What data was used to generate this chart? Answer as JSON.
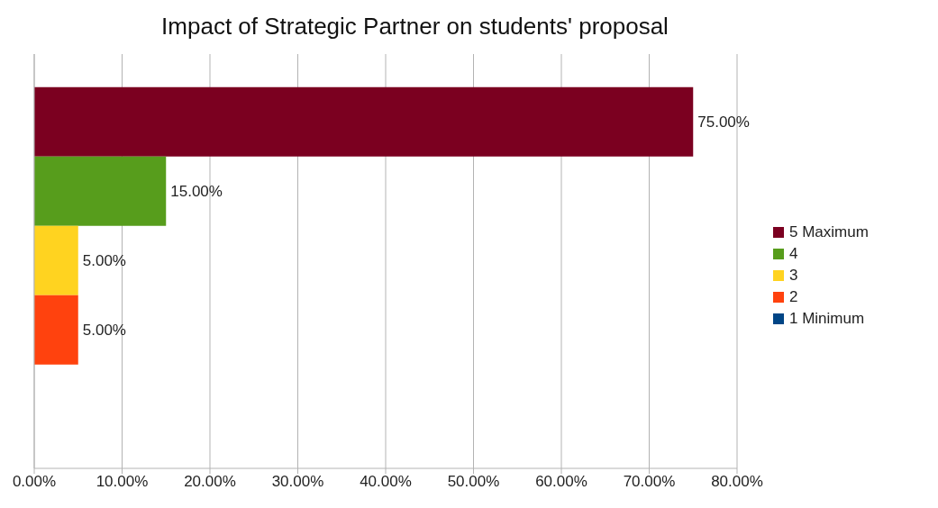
{
  "chart_data": {
    "type": "bar",
    "orientation": "horizontal",
    "title": "Impact of Strategic Partner on students' proposal",
    "categories": [
      null
    ],
    "series": [
      {
        "name": "5 Maximum",
        "color": "#7b0020",
        "values": [
          75
        ],
        "value_labels": [
          "75.00%"
        ]
      },
      {
        "name": "4",
        "color": "#579d1c",
        "values": [
          15
        ],
        "value_labels": [
          "15.00%"
        ]
      },
      {
        "name": "3",
        "color": "#ffd320",
        "values": [
          5
        ],
        "value_labels": [
          "5.00%"
        ]
      },
      {
        "name": "2",
        "color": "#ff420e",
        "values": [
          5
        ],
        "value_labels": [
          "5.00%"
        ]
      },
      {
        "name": "1 Minimum",
        "color": "#004586",
        "values": [
          null
        ]
      }
    ],
    "xlim": [
      0,
      80
    ],
    "xticks": [
      {
        "value": 0,
        "label": "0.00%"
      },
      {
        "value": 10,
        "label": "10.00%"
      },
      {
        "value": 20,
        "label": "20.00%"
      },
      {
        "value": 30,
        "label": "30.00%"
      },
      {
        "value": 40,
        "label": "40.00%"
      },
      {
        "value": 50,
        "label": "50.00%"
      },
      {
        "value": 60,
        "label": "60.00%"
      },
      {
        "value": 70,
        "label": "70.00%"
      },
      {
        "value": 80,
        "label": "80.00%"
      }
    ],
    "grid": "x",
    "legend": "right",
    "tick_labels": "x"
  }
}
